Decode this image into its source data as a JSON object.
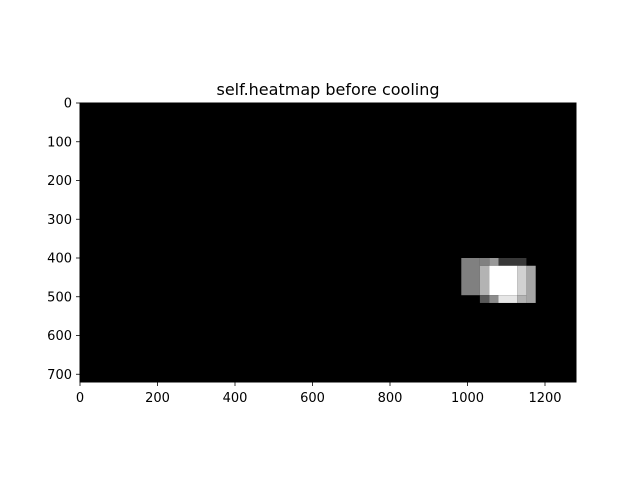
{
  "chart_data": {
    "type": "heatmap",
    "title": "self.heatmap before cooling",
    "colormap": "gray",
    "background_color": "#000000",
    "image_extent": {
      "x": [
        0,
        1280
      ],
      "y": [
        0,
        720
      ]
    },
    "y_axis_inverted": true,
    "xlim": [
      0,
      1280
    ],
    "ylim": [
      720,
      0
    ],
    "xticks": [
      0,
      200,
      400,
      600,
      800,
      1000,
      1200
    ],
    "yticks": [
      0,
      100,
      200,
      300,
      400,
      500,
      600,
      700
    ],
    "cells": [
      {
        "x0": 984,
        "x1": 1032,
        "y0": 400,
        "y1": 496,
        "value": 0.5
      },
      {
        "x0": 1032,
        "x1": 1056,
        "y0": 400,
        "y1": 420,
        "value": 0.5
      },
      {
        "x0": 1056,
        "x1": 1080,
        "y0": 400,
        "y1": 420,
        "value": 0.6
      },
      {
        "x0": 1080,
        "x1": 1152,
        "y0": 400,
        "y1": 420,
        "value": 0.22
      },
      {
        "x0": 1032,
        "x1": 1056,
        "y0": 420,
        "y1": 496,
        "value": 0.7
      },
      {
        "x0": 1056,
        "x1": 1128,
        "y0": 420,
        "y1": 496,
        "value": 1.0
      },
      {
        "x0": 1128,
        "x1": 1152,
        "y0": 420,
        "y1": 496,
        "value": 0.82
      },
      {
        "x0": 1152,
        "x1": 1176,
        "y0": 420,
        "y1": 516,
        "value": 0.65
      },
      {
        "x0": 1032,
        "x1": 1056,
        "y0": 496,
        "y1": 516,
        "value": 0.35
      },
      {
        "x0": 1056,
        "x1": 1080,
        "y0": 496,
        "y1": 516,
        "value": 0.55
      },
      {
        "x0": 1080,
        "x1": 1128,
        "y0": 496,
        "y1": 516,
        "value": 0.9
      },
      {
        "x0": 1128,
        "x1": 1152,
        "y0": 496,
        "y1": 516,
        "value": 0.7
      }
    ]
  }
}
